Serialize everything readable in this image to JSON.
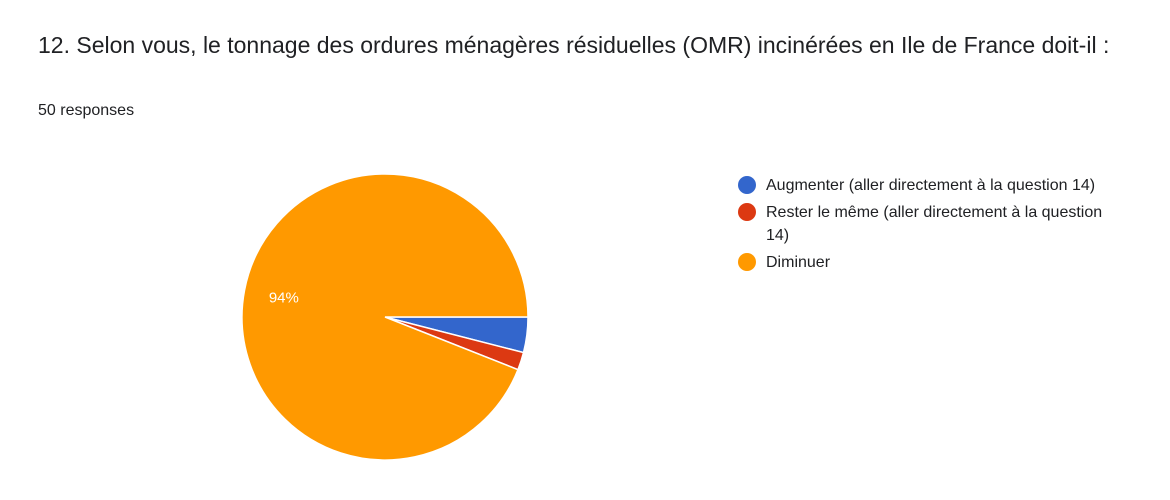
{
  "question": {
    "title": "12. Selon vous, le tonnage des ordures ménagères résiduelles (OMR) incinérées en Ile de France doit-il :",
    "response_count": "50 responses"
  },
  "chart_data": {
    "type": "pie",
    "title": "12. Selon vous, le tonnage des ordures ménagères résiduelles (OMR) incinérées en Ile de France doit-il :",
    "categories": [
      "Augmenter (aller directement à la question 14)",
      "Rester le même (aller directement à la question 14)",
      "Diminuer"
    ],
    "values": [
      2,
      1,
      47
    ],
    "colors": [
      "#3366cc",
      "#dc3912",
      "#ff9900"
    ],
    "data_labels": [
      "",
      "",
      "94%"
    ],
    "legend_position": "right",
    "start_angle_deg": 90,
    "direction": "clockwise"
  }
}
